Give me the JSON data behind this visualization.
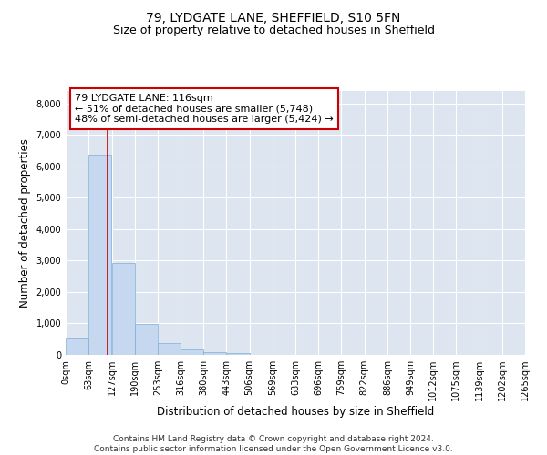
{
  "title1": "79, LYDGATE LANE, SHEFFIELD, S10 5FN",
  "title2": "Size of property relative to detached houses in Sheffield",
  "xlabel": "Distribution of detached houses by size in Sheffield",
  "ylabel": "Number of detached properties",
  "bin_labels": [
    "0sqm",
    "63sqm",
    "127sqm",
    "190sqm",
    "253sqm",
    "316sqm",
    "380sqm",
    "443sqm",
    "506sqm",
    "569sqm",
    "633sqm",
    "696sqm",
    "759sqm",
    "822sqm",
    "886sqm",
    "949sqm",
    "1012sqm",
    "1075sqm",
    "1139sqm",
    "1202sqm",
    "1265sqm"
  ],
  "bin_edges": [
    0,
    63,
    127,
    190,
    253,
    316,
    380,
    443,
    506,
    569,
    633,
    696,
    759,
    822,
    886,
    949,
    1012,
    1075,
    1139,
    1202,
    1265
  ],
  "bar_heights": [
    560,
    6380,
    2920,
    980,
    380,
    160,
    90,
    60,
    0,
    0,
    0,
    0,
    0,
    0,
    0,
    0,
    0,
    0,
    0,
    0
  ],
  "bar_color": "#c5d8f0",
  "bar_edge_color": "#7faed4",
  "vline_x": 116,
  "vline_color": "#cc0000",
  "annotation_line1": "79 LYDGATE LANE: 116sqm",
  "annotation_line2": "← 51% of detached houses are smaller (5,748)",
  "annotation_line3": "48% of semi-detached houses are larger (5,424) →",
  "ylim": [
    0,
    8400
  ],
  "yticks": [
    0,
    1000,
    2000,
    3000,
    4000,
    5000,
    6000,
    7000,
    8000
  ],
  "bg_color": "#dde5f0",
  "footer_text": "Contains HM Land Registry data © Crown copyright and database right 2024.\nContains public sector information licensed under the Open Government Licence v3.0.",
  "title1_fontsize": 10,
  "title2_fontsize": 9,
  "xlabel_fontsize": 8.5,
  "ylabel_fontsize": 8.5,
  "tick_fontsize": 7,
  "annotation_fontsize": 8,
  "footer_fontsize": 6.5
}
